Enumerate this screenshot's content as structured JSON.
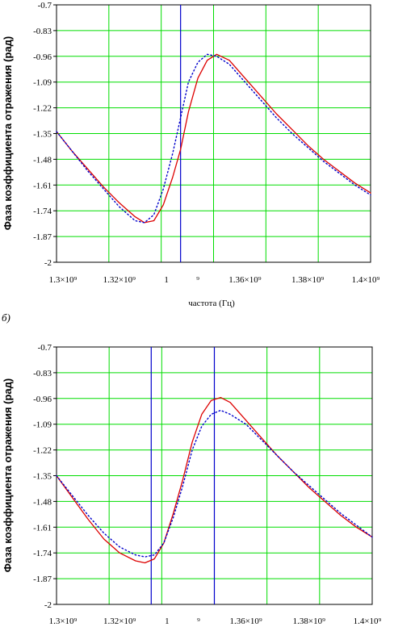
{
  "chart_data": [
    {
      "type": "line",
      "ylabel": "Фаза коэффициента отражения (рад)",
      "xlabel": "частота (Гц)",
      "ylim": [
        -2,
        -0.7
      ],
      "xlim": [
        1300000000.0,
        1400000000.0
      ],
      "y_ticks": [
        "-0.7",
        "-0.83",
        "-0.96",
        "-1.09",
        "-1.22",
        "-1.35",
        "-1.48",
        "-1.61",
        "-1.74",
        "-1.87",
        "-2"
      ],
      "x_ticks": [
        "1.3×10⁹",
        "1.32×10⁹",
        "1",
        "⁹",
        "1.36×10⁹",
        "1.38×10⁹",
        "1.4×10⁹"
      ],
      "grid": true,
      "markers": [
        1339500000.0
      ],
      "series": [
        {
          "color": "#dd0000",
          "style": "solid",
          "x": [
            1300000000.0,
            1305000000.0,
            1310000000.0,
            1315000000.0,
            1320000000.0,
            1325000000.0,
            1328000000.0,
            1331000000.0,
            1334000000.0,
            1337000000.0,
            1339500000.0,
            1342000000.0,
            1345000000.0,
            1348000000.0,
            1351000000.0,
            1355000000.0,
            1360000000.0,
            1365000000.0,
            1370000000.0,
            1375000000.0,
            1380000000.0,
            1385000000.0,
            1390000000.0,
            1395000000.0,
            1400000000.0
          ],
          "y": [
            -1.34,
            -1.44,
            -1.53,
            -1.62,
            -1.7,
            -1.77,
            -1.8,
            -1.79,
            -1.71,
            -1.57,
            -1.43,
            -1.24,
            -1.07,
            -0.98,
            -0.95,
            -0.98,
            -1.07,
            -1.16,
            -1.25,
            -1.33,
            -1.41,
            -1.48,
            -1.54,
            -1.6,
            -1.65
          ]
        },
        {
          "color": "#0000cc",
          "style": "dotted",
          "x": [
            1300000000.0,
            1305000000.0,
            1310000000.0,
            1315000000.0,
            1320000000.0,
            1325000000.0,
            1328000000.0,
            1331000000.0,
            1334000000.0,
            1337000000.0,
            1339500000.0,
            1342000000.0,
            1345000000.0,
            1348000000.0,
            1351000000.0,
            1355000000.0,
            1360000000.0,
            1365000000.0,
            1370000000.0,
            1375000000.0,
            1380000000.0,
            1385000000.0,
            1390000000.0,
            1395000000.0,
            1400000000.0
          ],
          "y": [
            -1.34,
            -1.44,
            -1.54,
            -1.63,
            -1.72,
            -1.79,
            -1.8,
            -1.76,
            -1.63,
            -1.45,
            -1.27,
            -1.09,
            -0.99,
            -0.95,
            -0.96,
            -1.0,
            -1.09,
            -1.18,
            -1.27,
            -1.35,
            -1.42,
            -1.49,
            -1.55,
            -1.61,
            -1.66
          ]
        }
      ]
    },
    {
      "type": "line",
      "label": "б)",
      "ylabel": "Фаза коэффициента отражения (рад)",
      "ylim": [
        -2,
        -0.7
      ],
      "xlim": [
        1300000000.0,
        1400000000.0
      ],
      "y_ticks": [
        "-0.7",
        "-0.83",
        "-0.96",
        "-1.09",
        "-1.22",
        "-1.35",
        "-1.48",
        "-1.61",
        "-1.74",
        "-1.87",
        "-2"
      ],
      "x_ticks": [
        "1.3×10⁹",
        "1.32×10⁹",
        "1",
        "⁹",
        "1.36×10⁹",
        "1.38×10⁹",
        "1.4×10⁹"
      ],
      "grid": true,
      "markers": [
        1330000000.0,
        1350000000.0
      ],
      "series": [
        {
          "color": "#dd0000",
          "style": "solid",
          "x": [
            1300000000.0,
            1305000000.0,
            1310000000.0,
            1315000000.0,
            1320000000.0,
            1325000000.0,
            1328000000.0,
            1331000000.0,
            1334000000.0,
            1337000000.0,
            1340000000.0,
            1343000000.0,
            1346000000.0,
            1349000000.0,
            1352000000.0,
            1355000000.0,
            1360000000.0,
            1365000000.0,
            1370000000.0,
            1375000000.0,
            1380000000.0,
            1385000000.0,
            1390000000.0,
            1395000000.0,
            1400000000.0
          ],
          "y": [
            -1.35,
            -1.46,
            -1.57,
            -1.67,
            -1.74,
            -1.78,
            -1.79,
            -1.77,
            -1.69,
            -1.54,
            -1.37,
            -1.18,
            -1.04,
            -0.97,
            -0.955,
            -0.98,
            -1.07,
            -1.16,
            -1.25,
            -1.33,
            -1.41,
            -1.48,
            -1.55,
            -1.61,
            -1.66
          ]
        },
        {
          "color": "#0000cc",
          "style": "dotted",
          "x": [
            1300000000.0,
            1305000000.0,
            1310000000.0,
            1315000000.0,
            1320000000.0,
            1325000000.0,
            1328000000.0,
            1331000000.0,
            1334000000.0,
            1337000000.0,
            1340000000.0,
            1343000000.0,
            1346000000.0,
            1349000000.0,
            1352000000.0,
            1355000000.0,
            1360000000.0,
            1365000000.0,
            1370000000.0,
            1375000000.0,
            1380000000.0,
            1385000000.0,
            1390000000.0,
            1395000000.0,
            1400000000.0
          ],
          "y": [
            -1.35,
            -1.45,
            -1.55,
            -1.64,
            -1.71,
            -1.75,
            -1.76,
            -1.75,
            -1.69,
            -1.56,
            -1.4,
            -1.22,
            -1.1,
            -1.04,
            -1.02,
            -1.04,
            -1.09,
            -1.17,
            -1.25,
            -1.33,
            -1.4,
            -1.47,
            -1.54,
            -1.6,
            -1.66
          ]
        }
      ]
    }
  ]
}
